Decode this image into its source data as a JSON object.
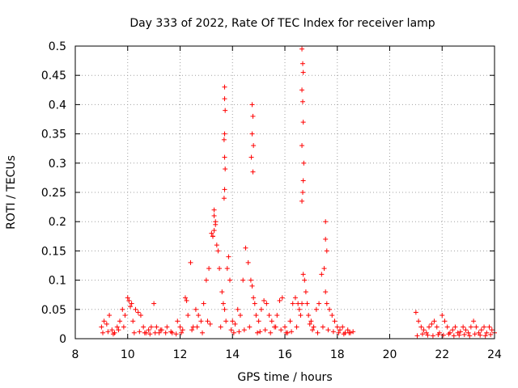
{
  "chart_data": {
    "type": "scatter",
    "title": "Day 333 of 2022, Rate Of TEC Index for receiver lamp",
    "xlabel": "GPS time / hours",
    "ylabel": "ROTI / TECUs",
    "xlim": [
      8,
      24
    ],
    "ylim": [
      0,
      0.5
    ],
    "xticks": [
      8,
      10,
      12,
      14,
      16,
      18,
      20,
      22,
      24
    ],
    "yticks": [
      0,
      0.05,
      0.1,
      0.15,
      0.2,
      0.25,
      0.3,
      0.35,
      0.4,
      0.45,
      0.5
    ],
    "ytick_labels": [
      "0",
      "0.05",
      "0.1",
      "0.15",
      "0.2",
      "0.25",
      "0.3",
      "0.35",
      "0.4",
      "0.45",
      "0.5"
    ],
    "grid": true,
    "marker": "+",
    "marker_color": "#ff0000",
    "series": [
      {
        "name": "ROTI",
        "x": [
          9.0,
          9.1,
          9.2,
          9.3,
          9.4,
          9.5,
          9.6,
          9.7,
          9.8,
          9.9,
          10.0,
          10.05,
          10.1,
          10.15,
          10.2,
          10.3,
          10.4,
          10.5,
          10.6,
          10.7,
          10.8,
          10.9,
          11.0,
          11.1,
          11.2,
          11.3,
          11.5,
          11.7,
          11.9,
          12.0,
          12.1,
          12.2,
          12.25,
          12.3,
          12.4,
          12.5,
          12.6,
          12.7,
          12.8,
          12.9,
          13.0,
          13.1,
          13.2,
          13.25,
          13.3,
          13.35,
          13.4,
          13.45,
          13.5,
          13.6,
          13.65,
          13.7,
          13.75,
          13.8,
          13.85,
          13.9,
          14.0,
          14.1,
          14.2,
          14.3,
          14.4,
          14.5,
          14.6,
          14.7,
          14.75,
          14.8,
          14.85,
          14.9,
          15.0,
          15.1,
          15.2,
          15.3,
          15.4,
          15.5,
          15.6,
          15.7,
          15.8,
          15.9,
          16.0,
          16.1,
          16.2,
          16.3,
          16.4,
          16.5,
          16.55,
          16.6,
          16.65,
          16.7,
          16.75,
          16.8,
          16.85,
          16.9,
          17.0,
          17.1,
          17.2,
          17.3,
          17.4,
          17.5,
          17.55,
          17.6,
          17.7,
          17.8,
          17.9,
          18.0,
          18.1,
          18.2,
          18.3,
          18.4,
          18.5,
          18.6,
          21.0,
          21.1,
          21.2,
          21.3,
          21.4,
          21.5,
          21.6,
          21.7,
          21.8,
          21.9,
          22.0,
          22.1,
          22.2,
          22.3,
          22.4,
          22.5,
          22.6,
          22.7,
          22.8,
          22.9,
          23.0,
          23.1,
          23.2,
          23.3,
          23.4,
          23.5,
          23.6,
          23.7,
          23.8,
          23.9,
          24.0,
          9.05,
          9.25,
          9.45,
          9.65,
          9.85,
          10.25,
          10.45,
          10.65,
          10.85,
          11.05,
          11.25,
          11.45,
          11.65,
          11.85,
          12.05,
          12.45,
          12.65,
          12.85,
          13.05,
          13.15,
          13.55,
          13.95,
          14.05,
          14.25,
          14.45,
          14.65,
          14.95,
          15.05,
          15.25,
          15.45,
          15.65,
          15.85,
          16.05,
          16.25,
          16.45,
          16.95,
          17.05,
          17.25,
          17.45,
          17.65,
          17.85,
          18.05,
          18.25,
          18.45,
          21.05,
          21.25,
          21.45,
          21.65,
          21.85,
          22.05,
          22.25,
          22.45,
          22.65,
          22.85,
          23.05,
          23.25,
          23.45,
          23.65,
          23.85,
          13.7,
          13.7,
          13.72,
          13.7,
          13.68,
          13.7,
          13.72,
          13.7,
          13.68,
          14.75,
          14.78,
          14.75,
          14.8,
          14.72,
          14.78,
          16.65,
          16.68,
          16.7,
          16.65,
          16.68,
          16.7,
          16.65,
          16.72,
          16.7,
          16.68,
          16.65,
          17.55,
          17.55,
          17.6,
          13.3,
          13.35,
          13.3,
          13.25
        ],
        "y": [
          0.02,
          0.03,
          0.025,
          0.04,
          0.015,
          0.01,
          0.02,
          0.03,
          0.05,
          0.04,
          0.07,
          0.065,
          0.055,
          0.06,
          0.03,
          0.05,
          0.045,
          0.04,
          0.02,
          0.01,
          0.015,
          0.02,
          0.06,
          0.02,
          0.01,
          0.015,
          0.02,
          0.01,
          0.03,
          0.02,
          0.015,
          0.07,
          0.065,
          0.04,
          0.13,
          0.02,
          0.05,
          0.04,
          0.03,
          0.06,
          0.1,
          0.12,
          0.18,
          0.175,
          0.22,
          0.2,
          0.16,
          0.15,
          0.12,
          0.08,
          0.06,
          0.05,
          0.03,
          0.12,
          0.14,
          0.1,
          0.03,
          0.025,
          0.05,
          0.04,
          0.1,
          0.155,
          0.13,
          0.1,
          0.09,
          0.07,
          0.06,
          0.04,
          0.03,
          0.05,
          0.065,
          0.06,
          0.04,
          0.03,
          0.02,
          0.04,
          0.065,
          0.07,
          0.02,
          0.01,
          0.03,
          0.06,
          0.07,
          0.06,
          0.05,
          0.04,
          0.06,
          0.11,
          0.1,
          0.08,
          0.06,
          0.04,
          0.03,
          0.02,
          0.05,
          0.06,
          0.11,
          0.12,
          0.08,
          0.06,
          0.05,
          0.04,
          0.03,
          0.02,
          0.015,
          0.02,
          0.01,
          0.015,
          0.01,
          0.012,
          0.045,
          0.03,
          0.02,
          0.015,
          0.01,
          0.02,
          0.025,
          0.03,
          0.02,
          0.01,
          0.04,
          0.03,
          0.02,
          0.01,
          0.015,
          0.02,
          0.01,
          0.012,
          0.02,
          0.015,
          0.01,
          0.02,
          0.03,
          0.02,
          0.01,
          0.015,
          0.02,
          0.01,
          0.02,
          0.015,
          0.01,
          0.01,
          0.012,
          0.008,
          0.015,
          0.02,
          0.01,
          0.012,
          0.01,
          0.008,
          0.01,
          0.015,
          0.01,
          0.012,
          0.008,
          0.01,
          0.015,
          0.02,
          0.01,
          0.03,
          0.025,
          0.02,
          0.015,
          0.01,
          0.012,
          0.015,
          0.02,
          0.01,
          0.012,
          0.015,
          0.01,
          0.02,
          0.015,
          0.01,
          0.012,
          0.02,
          0.025,
          0.015,
          0.01,
          0.02,
          0.015,
          0.012,
          0.01,
          0.008,
          0.01,
          0.005,
          0.008,
          0.006,
          0.005,
          0.007,
          0.006,
          0.008,
          0.005,
          0.006,
          0.007,
          0.005,
          0.008,
          0.006,
          0.005,
          0.007,
          0.43,
          0.41,
          0.39,
          0.35,
          0.34,
          0.31,
          0.29,
          0.255,
          0.24,
          0.4,
          0.38,
          0.35,
          0.33,
          0.31,
          0.285,
          0.495,
          0.47,
          0.455,
          0.425,
          0.405,
          0.37,
          0.33,
          0.3,
          0.27,
          0.25,
          0.235,
          0.2,
          0.17,
          0.15,
          0.21,
          0.195,
          0.185,
          0.175
        ]
      }
    ]
  }
}
